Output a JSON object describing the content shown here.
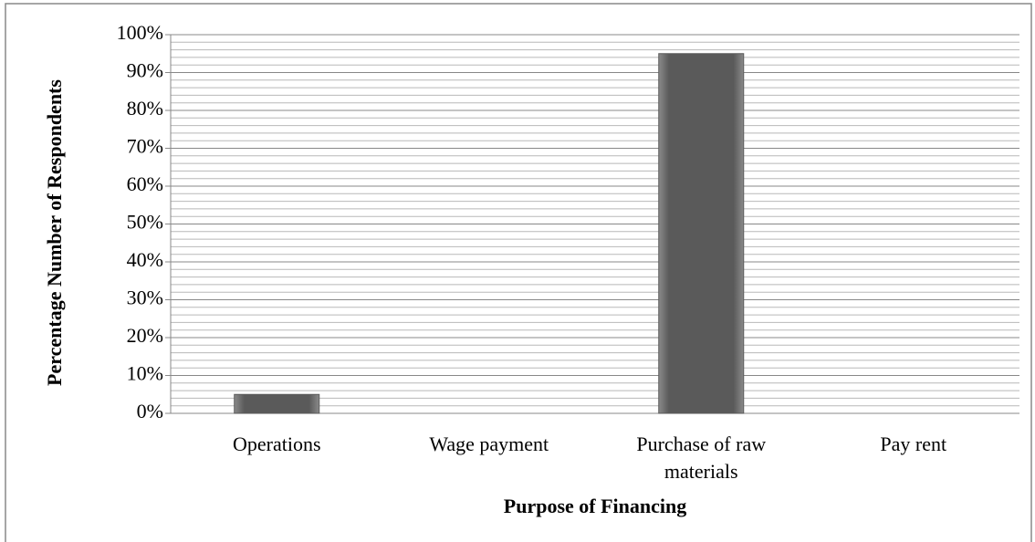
{
  "chart_data": {
    "type": "bar",
    "x_label": "Purpose of Financing",
    "y_label": "Percentage Number of Respondents",
    "categories": [
      "Operations",
      "Wage payment",
      "Purchase of raw materials",
      "Pay rent"
    ],
    "values": [
      5,
      0,
      95,
      0
    ],
    "color": "#5a5a5a",
    "ylim": [
      0,
      100
    ],
    "yticks": [
      {
        "value": 0,
        "label": "0%"
      },
      {
        "value": 10,
        "label": "10%"
      },
      {
        "value": 20,
        "label": "20%"
      },
      {
        "value": 30,
        "label": "30%"
      },
      {
        "value": 40,
        "label": "40%"
      },
      {
        "value": 50,
        "label": "50%"
      },
      {
        "value": 60,
        "label": "60%"
      },
      {
        "value": 70,
        "label": "70%"
      },
      {
        "value": 80,
        "label": "80%"
      },
      {
        "value": 90,
        "label": "90%"
      },
      {
        "value": 100,
        "label": "100%"
      }
    ],
    "minor_yticks": [
      2,
      4,
      6,
      8,
      12,
      14,
      16,
      18,
      22,
      24,
      26,
      28,
      32,
      34,
      36,
      38,
      42,
      44,
      46,
      48,
      52,
      54,
      56,
      58,
      62,
      64,
      66,
      68,
      72,
      74,
      76,
      78,
      82,
      84,
      86,
      88,
      92,
      94,
      96,
      98
    ],
    "grid": true
  }
}
